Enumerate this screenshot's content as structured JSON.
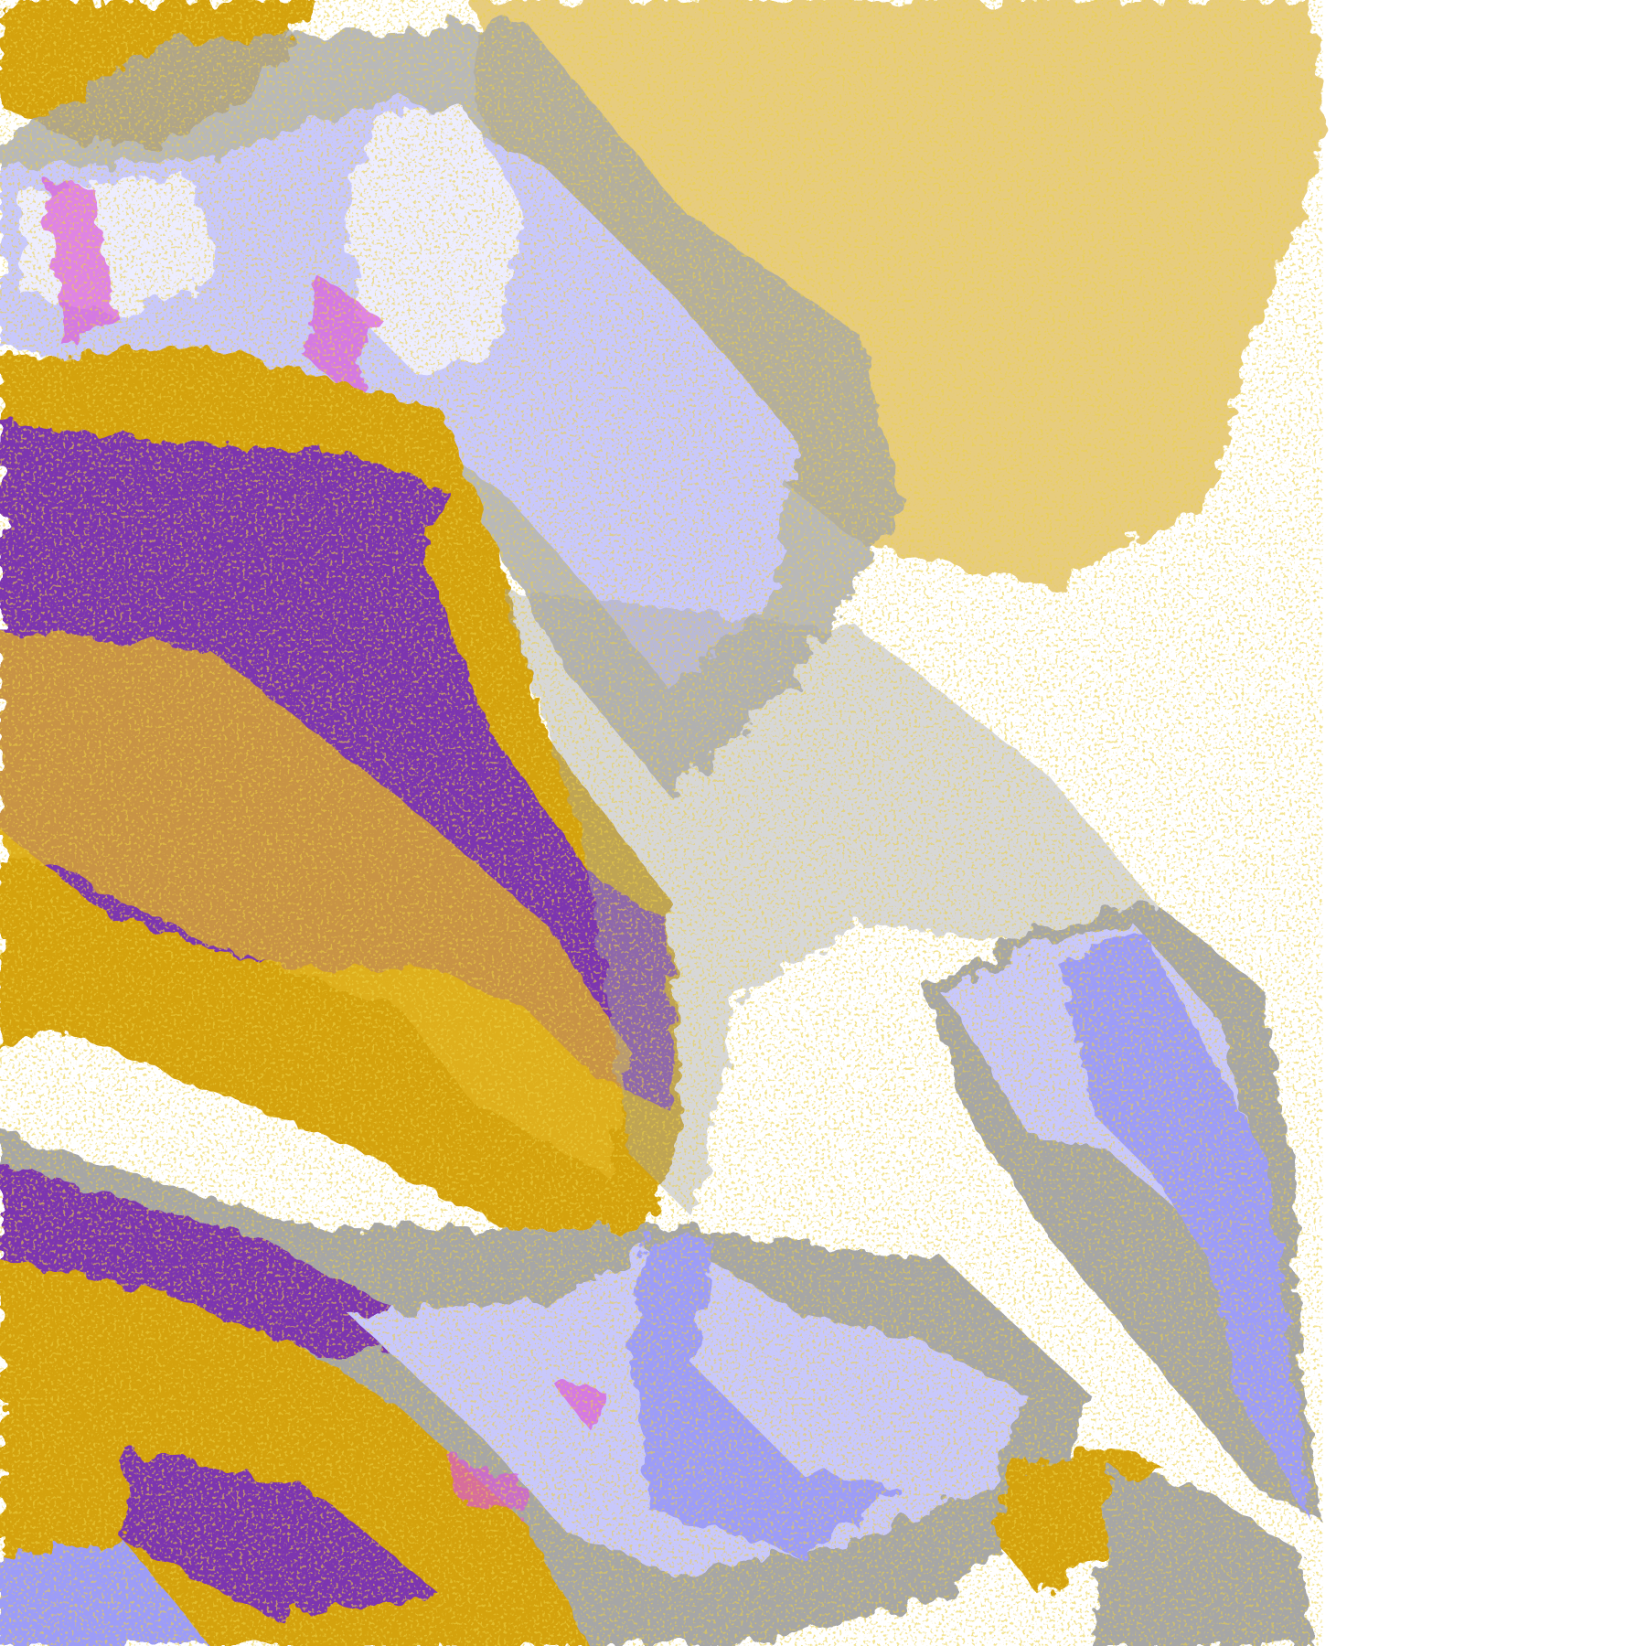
{
  "map": {
    "kind": "satellite cloud classification imagery",
    "colors": {
      "background": "#ffffff",
      "gold": "#d4a20f",
      "purple": "#7b35b0",
      "magenta": "#d957d9",
      "lavender": "#c8c8fc",
      "pale_lavender": "#ededff",
      "periwinkle": "#9c9cf8",
      "gray": "#a6a6a6",
      "dark_gray": "#8c8c8c"
    }
  }
}
